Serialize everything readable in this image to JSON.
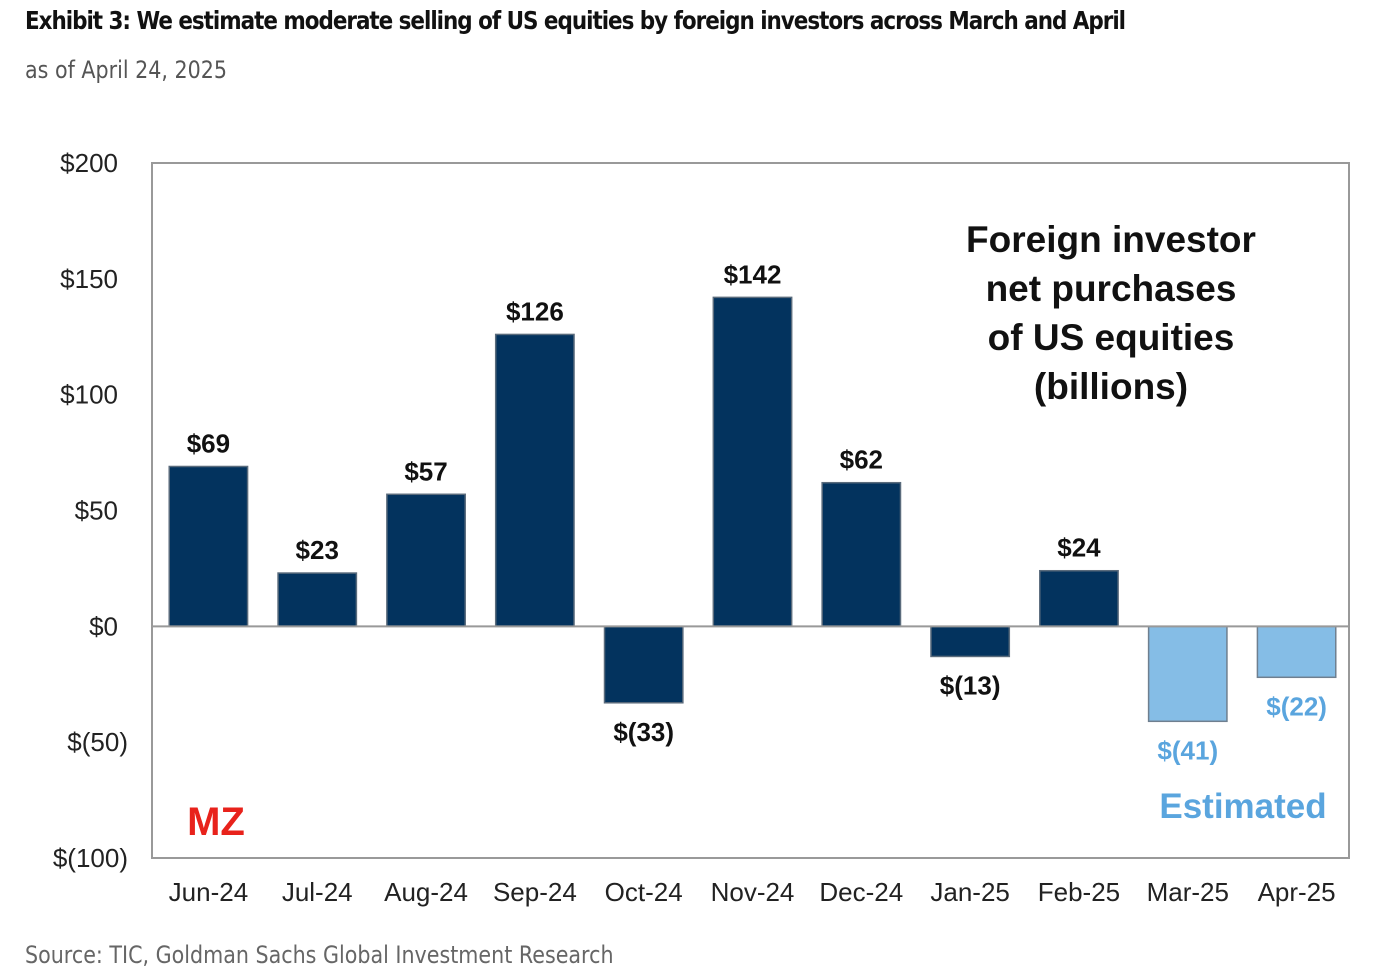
{
  "header": {
    "title": "Exhibit 3: We estimate moderate selling of US equities by foreign investors across March and April",
    "subtitle": "as of April 24, 2025"
  },
  "footer": {
    "source": "Source: TIC, Goldman Sachs Global Investment Research"
  },
  "watermark": "MZ",
  "colors": {
    "actual": "#03335e",
    "estimated": "#85bde6",
    "estimated_text": "#5aa5de",
    "axis": "#999999"
  },
  "chart_data": {
    "type": "bar",
    "title": "Foreign investor net purchases of US equities (billions)",
    "annotation_lines": [
      "Foreign investor",
      "net purchases",
      "of US equities",
      "(billions)"
    ],
    "estimated_label": "Estimated",
    "xlabel": "",
    "ylabel": "",
    "ylim": [
      -100,
      200
    ],
    "yticks": [
      200,
      150,
      100,
      50,
      0,
      -50,
      -100
    ],
    "ytick_labels": [
      "$200",
      "$150",
      "$100",
      "$50",
      "$0",
      "$(50)",
      "$(100)"
    ],
    "grid": false,
    "legend": "none",
    "categories": [
      "Jun-24",
      "Jul-24",
      "Aug-24",
      "Sep-24",
      "Oct-24",
      "Nov-24",
      "Dec-24",
      "Jan-25",
      "Feb-25",
      "Mar-25",
      "Apr-25"
    ],
    "values": [
      69,
      23,
      57,
      126,
      -33,
      142,
      62,
      -13,
      24,
      -41,
      -22
    ],
    "data_labels": [
      "$69",
      "$23",
      "$57",
      "$126",
      "$(33)",
      "$142",
      "$62",
      "$(13)",
      "$24",
      "$(41)",
      "$(22)"
    ],
    "estimated": [
      false,
      false,
      false,
      false,
      false,
      false,
      false,
      false,
      false,
      true,
      true
    ]
  }
}
